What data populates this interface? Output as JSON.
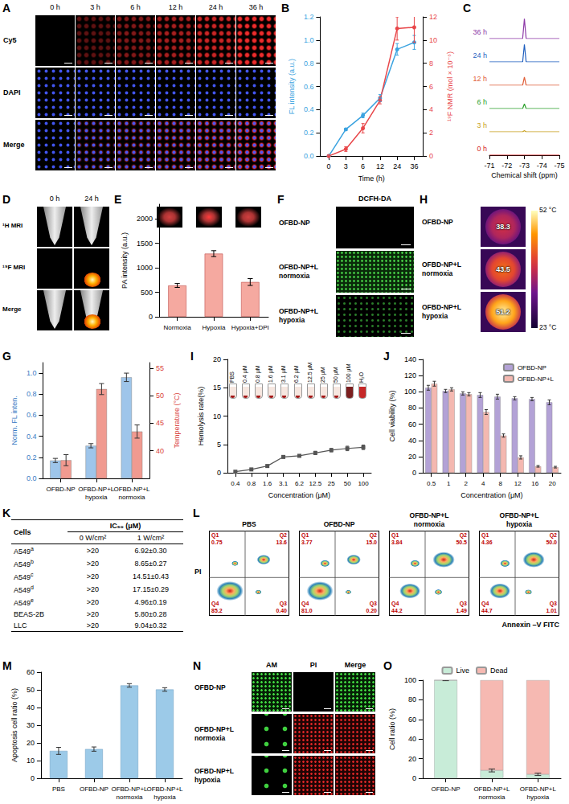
{
  "chart_data": [
    {
      "panel": "B",
      "type": "line",
      "categories": [
        "0",
        "3",
        "6",
        "12",
        "24",
        "36"
      ],
      "x_label": "Time (h)",
      "y_label": "FL intensity (a.u.)",
      "y2_label": "¹⁹F NMR (mol × 10⁻⁶)",
      "ylim": [
        0,
        1.2
      ],
      "yticks": [
        {
          "value": 0,
          "label": "0.0"
        },
        0.2,
        0.4,
        0.6,
        0.8,
        {
          "value": 1,
          "label": "1.0"
        },
        1.2
      ],
      "y2lim": [
        0,
        12
      ],
      "y2ticks": [
        0,
        2,
        4,
        6,
        8,
        10,
        12
      ],
      "series": [
        {
          "color": "#3ba3e0",
          "marker": "circle",
          "values": [
            0.0,
            0.23,
            0.35,
            0.5,
            0.92,
            0.98
          ],
          "errors": [
            0.01,
            0.01,
            0.02,
            0.03,
            0.05,
            0.06
          ]
        },
        {
          "color": "#e8474a",
          "marker": "circle",
          "axis": "y2",
          "values": [
            0,
            0.6,
            2.4,
            4.8,
            11.0,
            11.1
          ],
          "errors": [
            0.1,
            0.2,
            0.4,
            0.3,
            1.0,
            1.3
          ]
        }
      ]
    },
    {
      "panel": "C",
      "type": "line",
      "x": [
        -71,
        -72.9,
        -73,
        -73.1,
        -75
      ],
      "xlim": [
        -71,
        -75
      ],
      "xticks": [
        -71,
        -72,
        -73,
        -74,
        -75
      ],
      "x_label": "Chemical shift (ppm)",
      "ylim": [
        0,
        1
      ],
      "tick_labels": "x",
      "series": [
        {
          "name": "0 h",
          "color": "#d62728",
          "values": [
            0,
            0,
            0,
            0,
            0
          ]
        },
        {
          "name": "3 h",
          "color": "#c8a020",
          "values": [
            0,
            0,
            0.05,
            0,
            0
          ]
        },
        {
          "name": "6 h",
          "color": "#2ca02c",
          "values": [
            0,
            0,
            0.2,
            0,
            0
          ]
        },
        {
          "name": "12 h",
          "color": "#e0603a",
          "values": [
            0,
            0,
            0.35,
            0,
            0
          ]
        },
        {
          "name": "24 h",
          "color": "#1f5fbf",
          "values": [
            0,
            0,
            0.75,
            0,
            0
          ]
        },
        {
          "name": "36 h",
          "color": "#8e3aa8",
          "values": [
            0,
            0,
            0.85,
            0,
            0
          ]
        }
      ]
    },
    {
      "panel": "E",
      "type": "bar",
      "categories": [
        "Normoxia",
        "Hypoxia",
        "Hypoxia+DPI"
      ],
      "values": [
        640,
        1290,
        710
      ],
      "errors": [
        40,
        60,
        70
      ],
      "color": "#f5a9a0",
      "ylim": [
        0,
        2300
      ],
      "yticks": [
        0,
        500,
        1000,
        1500,
        2000
      ],
      "y_label": "PA intensity (a.u.)"
    },
    {
      "panel": "G",
      "type": "bar",
      "categories": [
        "OFBD-NP",
        "OFBD-NP+L hypoxia",
        "OFBD-NP+L normoxia"
      ],
      "y_label": "Norm. FL inten.",
      "y2_label": "Temperature (°C)",
      "ylim": [
        0,
        1.1
      ],
      "yticks": [
        {
          "value": 0,
          "label": "0.0"
        },
        0.2,
        0.4,
        0.6,
        0.8,
        {
          "value": 1,
          "label": "1.0"
        }
      ],
      "y2lim": [
        35,
        56
      ],
      "y2ticks": [
        40,
        45,
        50,
        55
      ],
      "series": [
        {
          "color": "#9ec5ea",
          "values": [
            0.17,
            0.31,
            0.96
          ],
          "errors": [
            0.02,
            0.02,
            0.04
          ]
        },
        {
          "color": "#f09a90",
          "axis": "y2",
          "values": [
            38.3,
            51.2,
            43.5
          ],
          "errors": [
            1.0,
            1.0,
            1.2
          ]
        }
      ]
    },
    {
      "panel": "I",
      "type": "line",
      "categories": [
        "0.4",
        "0.8",
        "1.6",
        "3.1",
        "6.2",
        "12.5",
        "25",
        "50",
        "100"
      ],
      "values": [
        0.2,
        0.6,
        1.2,
        2.8,
        3.0,
        3.5,
        4.0,
        4.3,
        4.5
      ],
      "errors": [
        0.1,
        0.1,
        0.2,
        0.2,
        0.2,
        0.3,
        0.3,
        0.4,
        0.4
      ],
      "color": "#555555",
      "marker": "square",
      "ylim": [
        0,
        20
      ],
      "yticks": [
        0,
        5,
        10,
        15,
        20
      ],
      "x_label": "Concentration (μM)",
      "y_label": "Hemolysis rate(%)",
      "inset_labels": [
        "PBS",
        "0.4 μM",
        "0.8 μM",
        "1.6 μM",
        "3.1 μM",
        "6.2 μM",
        "12.5 μM",
        "25 μM",
        "50 μM",
        "100 μM",
        "H₂O"
      ]
    },
    {
      "panel": "J",
      "type": "bar",
      "categories": [
        "0.5",
        "1",
        "2",
        "4",
        "8",
        "12",
        "16",
        "20"
      ],
      "x_label": "Concentration (μM)",
      "y_label": "Cell viability (%)",
      "ylim": [
        0,
        140
      ],
      "yticks": [
        0,
        20,
        40,
        60,
        80,
        100,
        120,
        140
      ],
      "legend": "upper right",
      "series": [
        {
          "name": "OFBD-NP",
          "color": "#b3a2d6",
          "values": [
            105,
            101,
            98,
            96,
            94,
            92,
            91,
            87
          ],
          "errors": [
            3,
            2,
            2,
            3,
            3,
            2,
            2,
            3
          ]
        },
        {
          "name": "OFBD-NP+L",
          "color": "#f4b8b0",
          "values": [
            110,
            103,
            97,
            75,
            46,
            19,
            8,
            7
          ],
          "errors": [
            3,
            2,
            2,
            3,
            2,
            2,
            1,
            1
          ]
        }
      ]
    },
    {
      "panel": "M",
      "type": "bar",
      "categories": [
        "PBS",
        "OFBD-NP",
        "OFBD-NP+L normoxia",
        "OFBD-NP+L hypoxia"
      ],
      "values": [
        15.5,
        16.5,
        52.5,
        50.2
      ],
      "errors": [
        2.0,
        1.2,
        1.0,
        1.0
      ],
      "color": "#9ccae8",
      "ylim": [
        0,
        60
      ],
      "yticks": [
        0,
        10,
        20,
        30,
        40,
        50,
        60
      ],
      "y_label": "Apoptosis cell ratio (%)"
    },
    {
      "panel": "O",
      "type": "bar",
      "stacked": true,
      "legend": "top",
      "categories": [
        "OFBD-NP",
        "OFBD-NP+L normoxia",
        "OFBD-NP+L hypoxia"
      ],
      "ylim": [
        0,
        100
      ],
      "yticks": [
        0,
        20,
        40,
        60,
        80,
        100
      ],
      "y_label": "Cell ratio (%)",
      "series": [
        {
          "name": "Live",
          "color": "#c8ecd8",
          "values": [
            100,
            8,
            4
          ],
          "errors": [
            0.5,
            1.5,
            1.2
          ]
        },
        {
          "name": "Dead",
          "color": "#f6b9b2",
          "values": [
            0,
            92,
            96
          ]
        }
      ]
    }
  ],
  "images": {
    "A": {
      "panel": "A",
      "columns": [
        "0 h",
        "3 h",
        "6 h",
        "12 h",
        "24 h",
        "36 h"
      ],
      "rows": [
        "Cy5",
        "DAPI",
        "Merge"
      ]
    },
    "D": {
      "panel": "D",
      "columns": [
        "0 h",
        "24 h"
      ],
      "rows": [
        "¹H MRI",
        "¹⁹F MRI",
        "Merge"
      ]
    },
    "F": {
      "panel": "F",
      "title": "DCFH-DA",
      "rows": [
        "OFBD-NP",
        "OFBD-NP+L normoxia",
        "OFBD-NP+L hypoxia"
      ]
    },
    "H": {
      "panel": "H",
      "rows": [
        "OFBD-NP",
        "OFBD-NP+L normoxia",
        "OFBD-NP+L hypoxia"
      ],
      "temperatures": [
        38.3,
        43.5,
        51.2
      ],
      "colorbar": {
        "range": [
          23,
          52
        ],
        "ticks": [
          {
            "value": 52,
            "label": "52 °C"
          },
          {
            "value": 23,
            "label": "23 °C"
          }
        ]
      }
    },
    "N": {
      "panel": "N",
      "columns": [
        "AM",
        "PI",
        "Merge"
      ],
      "rows": [
        "OFBD-NP",
        "OFBD-NP+L normoxia",
        "OFBD-NP+L hypoxia"
      ]
    }
  },
  "table": {
    "panel": "K",
    "header": [
      "Cells",
      "IC₅₀ (μM)"
    ],
    "subheader": [
      "0 W/cm²",
      "1 W/cm²"
    ],
    "rows": [
      {
        "cell": "A549",
        "sup": "a",
        "values": [
          ">20",
          "6.92±0.30"
        ]
      },
      {
        "cell": "A549",
        "sup": "b",
        "values": [
          ">20",
          "8.65±0.27"
        ]
      },
      {
        "cell": "A549",
        "sup": "c",
        "values": [
          ">20",
          "14.51±0.43"
        ]
      },
      {
        "cell": "A549",
        "sup": "d",
        "values": [
          ">20",
          "17.15±0.29"
        ]
      },
      {
        "cell": "A549",
        "sup": "e",
        "values": [
          ">20",
          "4.96±0.19"
        ]
      },
      {
        "cell": "BEAS-2B",
        "values": [
          ">20",
          "5.80±0.28"
        ]
      },
      {
        "cell": "LLC",
        "values": [
          ">20",
          "9.04±0.32"
        ]
      }
    ]
  },
  "flow": {
    "panel": "L",
    "x_label": "Annexin –V FITC",
    "y_label": "PI",
    "plots": [
      {
        "title": "PBS",
        "quadrants": [
          {
            "name": "Q1",
            "value": "0.75"
          },
          {
            "name": "Q2",
            "value": "13.6"
          },
          {
            "name": "Q3",
            "value": "0.40"
          },
          {
            "name": "Q4",
            "value": "85.2"
          }
        ]
      },
      {
        "title": "OFBD-NP",
        "quadrants": [
          {
            "name": "Q1",
            "value": "3.77"
          },
          {
            "name": "Q2",
            "value": "15.0"
          },
          {
            "name": "Q3",
            "value": "0.20"
          },
          {
            "name": "Q4",
            "value": "81.0"
          }
        ]
      },
      {
        "title": "OFBD-NP+L normoxia",
        "quadrants": [
          {
            "name": "Q1",
            "value": "3.84"
          },
          {
            "name": "Q2",
            "value": "50.5"
          },
          {
            "name": "Q3",
            "value": "1.49"
          },
          {
            "name": "Q4",
            "value": "44.2"
          }
        ]
      },
      {
        "title": "OFBD-NP+L hypoxia",
        "quadrants": [
          {
            "name": "Q1",
            "value": "4.36"
          },
          {
            "name": "Q2",
            "value": "50.0"
          },
          {
            "name": "Q3",
            "value": "1.01"
          },
          {
            "name": "Q4",
            "value": "44.7"
          }
        ]
      }
    ]
  }
}
